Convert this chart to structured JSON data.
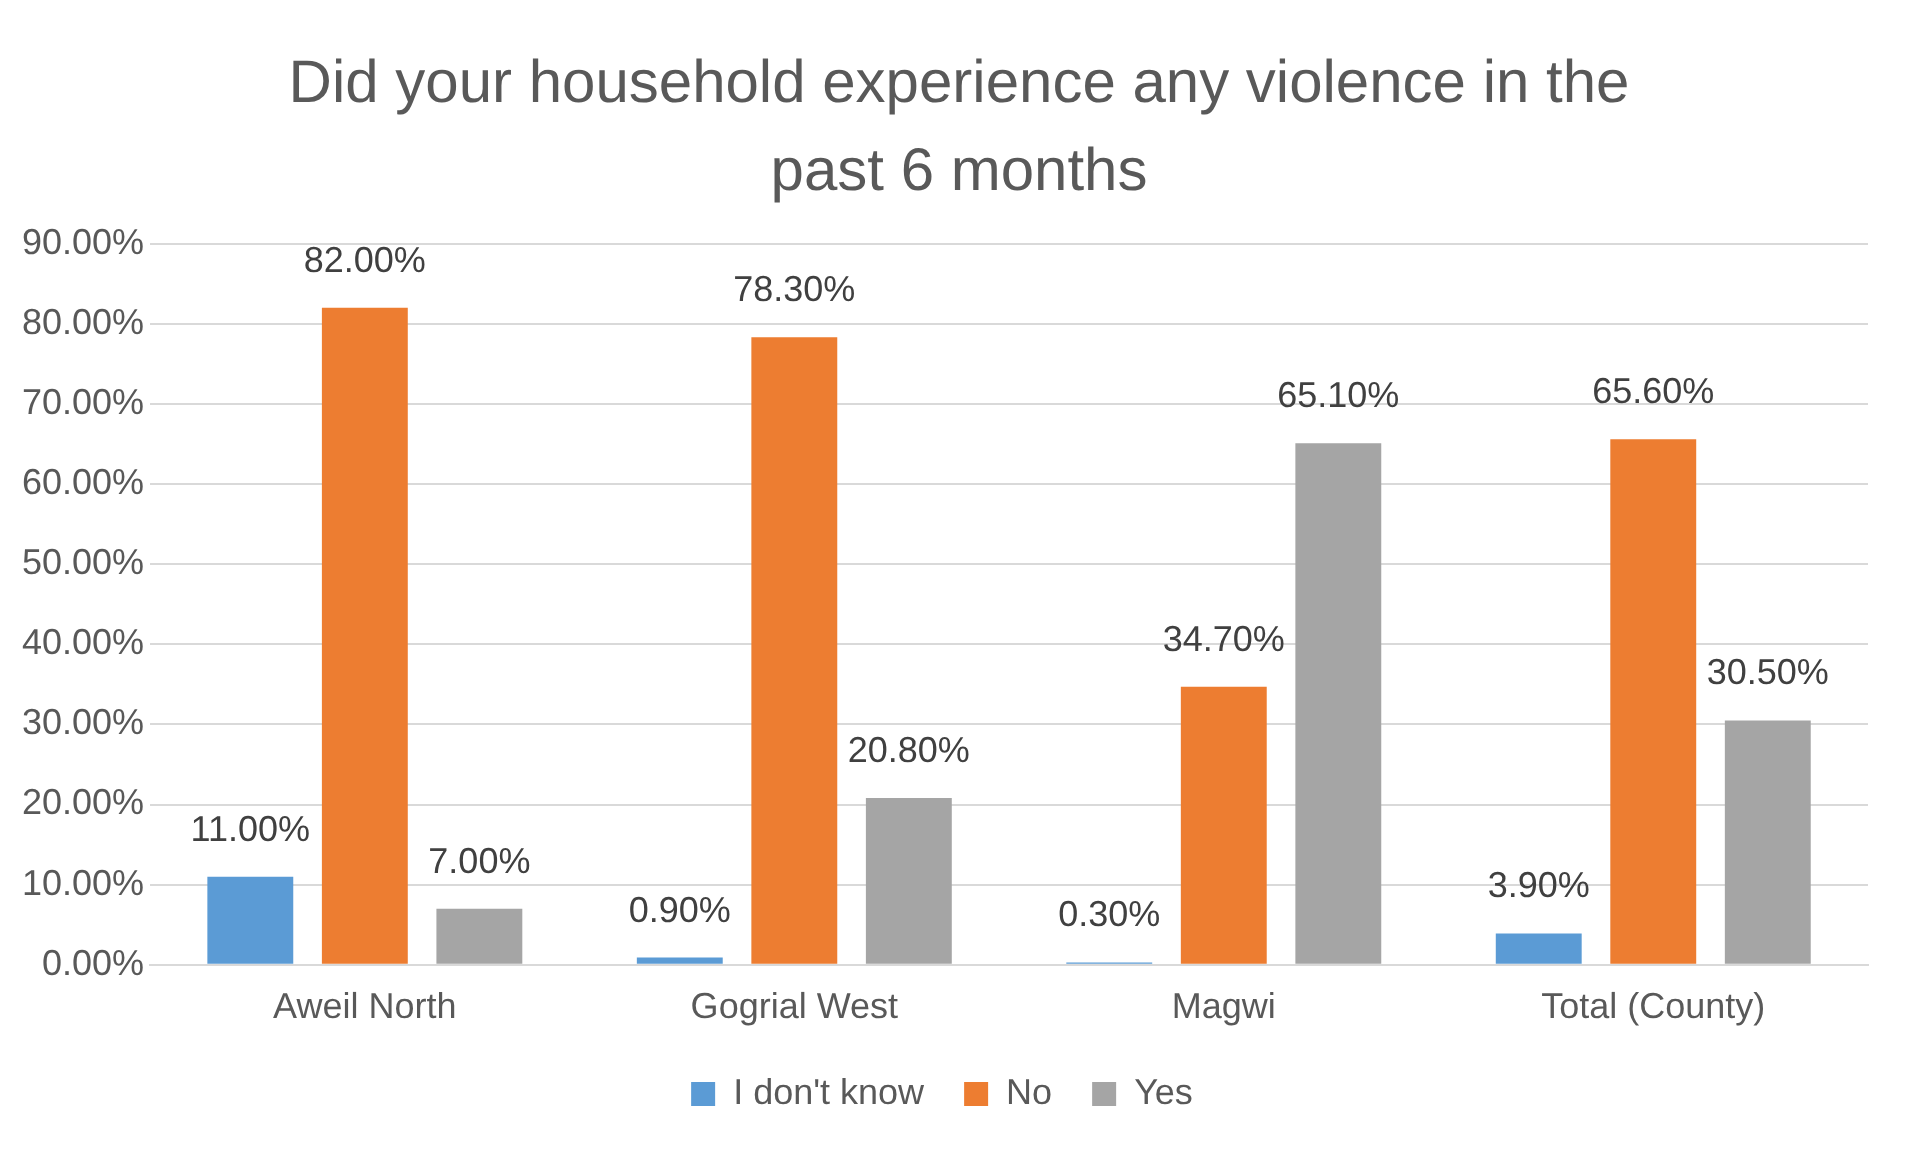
{
  "chart_data": {
    "type": "bar",
    "title": "Did your household experience any violence in the past 6 months",
    "categories": [
      "Aweil North",
      "Gogrial West",
      "Magwi",
      "Total (County)"
    ],
    "series": [
      {
        "name": "I don't know",
        "color": "#5b9bd5",
        "values": [
          11,
          0.9,
          0.3,
          3.9
        ],
        "value_labels": [
          "11.00%",
          "0.90%",
          "0.30%",
          "3.90%"
        ]
      },
      {
        "name": "No",
        "color": "#ed7d31",
        "values": [
          82,
          78.3,
          34.7,
          65.6
        ],
        "value_labels": [
          "82.00%",
          "78.30%",
          "34.70%",
          "65.60%"
        ]
      },
      {
        "name": "Yes",
        "color": "#a5a5a5",
        "values": [
          7,
          20.8,
          65.1,
          30.5
        ],
        "value_labels": [
          "7.00%",
          "20.80%",
          "65.10%",
          "30.50%"
        ]
      }
    ],
    "ylim": [
      0,
      90
    ],
    "yticks": [
      {
        "value": 0,
        "label": "0.00%"
      },
      {
        "value": 10,
        "label": "10.00%"
      },
      {
        "value": 20,
        "label": "20.00%"
      },
      {
        "value": 30,
        "label": "30.00%"
      },
      {
        "value": 40,
        "label": "40.00%"
      },
      {
        "value": 50,
        "label": "50.00%"
      },
      {
        "value": 60,
        "label": "60.00%"
      },
      {
        "value": 70,
        "label": "70.00%"
      },
      {
        "value": 80,
        "label": "80.00%"
      },
      {
        "value": 90,
        "label": "90.00%"
      }
    ],
    "grid": "y",
    "legend": "bottom"
  }
}
